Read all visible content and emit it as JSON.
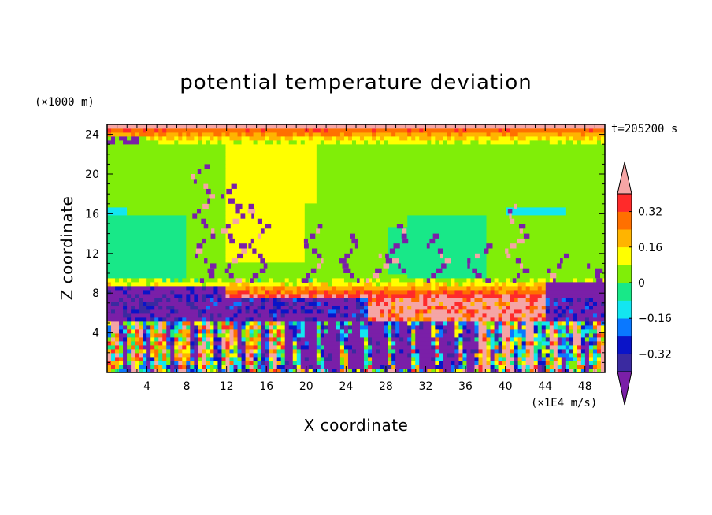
{
  "chart_data": {
    "type": "heatmap",
    "title": "potential temperature deviation",
    "xlabel": "X coordinate",
    "ylabel": "Z coordinate",
    "x_unit": "(×1E4 m/s)",
    "y_unit": "(×1000 m)",
    "time_label": "t=205200 s",
    "xlim": [
      0,
      50
    ],
    "ylim": [
      0,
      25
    ],
    "x_ticks": [
      4,
      8,
      12,
      16,
      20,
      24,
      28,
      32,
      36,
      40,
      44,
      48
    ],
    "y_ticks": [
      4,
      8,
      12,
      16,
      20,
      24
    ],
    "colorbar": {
      "levels": [
        -0.4,
        -0.32,
        -0.24,
        -0.16,
        -0.08,
        0,
        0.08,
        0.16,
        0.24,
        0.32,
        0.4
      ],
      "labels": [
        "0.32",
        "0.16",
        "0",
        "−0.16",
        "−0.32"
      ],
      "label_values": [
        0.32,
        0.16,
        0,
        -0.16,
        -0.32
      ],
      "colors": [
        "#7a1fa8",
        "#3a2aa0",
        "#0a14c8",
        "#0a78ff",
        "#13e6f0",
        "#18e888",
        "#80ee08",
        "#ffff00",
        "#ffb400",
        "#ff7000",
        "#ff2a2a",
        "#f5a5a5"
      ],
      "extend": "both"
    },
    "layers": [
      {
        "z_range": [
          0,
          5
        ],
        "description": "mixed",
        "dominant": 0.4
      },
      {
        "z_range": [
          5,
          7.5
        ],
        "dominant": -0.4
      },
      {
        "z_range": [
          7.5,
          9.5
        ],
        "dominant": 0.3
      },
      {
        "z_range": [
          9.5,
          16
        ],
        "dominant": 0.05
      },
      {
        "z_range": [
          16,
          23
        ],
        "dominant": 0.0
      },
      {
        "z_range": [
          23,
          25
        ],
        "dominant": 0.25
      }
    ]
  }
}
